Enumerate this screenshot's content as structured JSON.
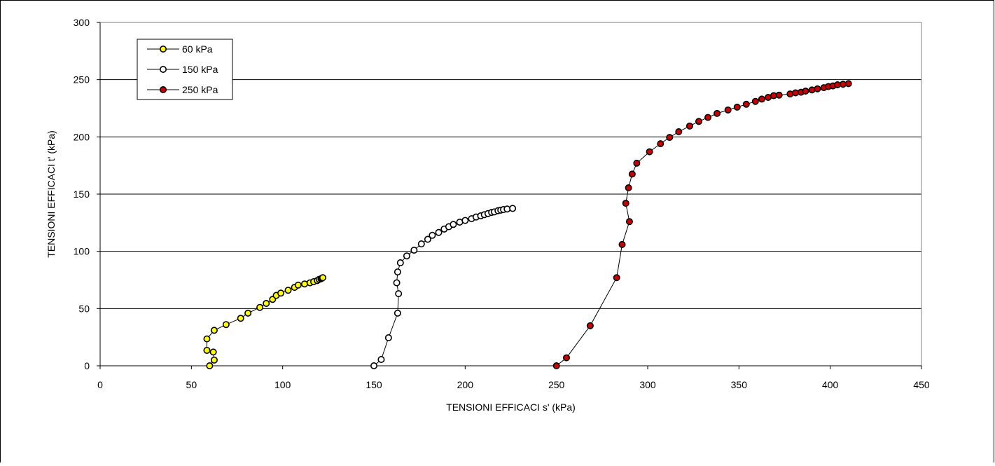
{
  "chart_data": {
    "type": "scatter",
    "xlabel": "TENSIONI EFFICACI s' (kPa)",
    "ylabel": "TENSIONI EFFICACI t'  (kPa)",
    "xlim": [
      0,
      450
    ],
    "ylim": [
      0,
      300
    ],
    "x_ticks": [
      0,
      50,
      100,
      150,
      200,
      250,
      300,
      350,
      400,
      450
    ],
    "y_ticks": [
      0,
      50,
      100,
      150,
      200,
      250,
      300
    ],
    "grid": "horizontal",
    "legend_position": "top-left",
    "series": [
      {
        "name": "60 kPa",
        "color": "#ffff00",
        "points": [
          [
            60,
            0
          ],
          [
            62.5,
            5
          ],
          [
            62,
            12
          ],
          [
            58.5,
            13.5
          ],
          [
            58.5,
            23.5
          ],
          [
            62.5,
            31
          ],
          [
            69,
            36
          ],
          [
            77,
            41.5
          ],
          [
            81,
            46
          ],
          [
            87.5,
            51
          ],
          [
            91,
            54.5
          ],
          [
            94.5,
            58
          ],
          [
            96.5,
            61.5
          ],
          [
            99,
            63.5
          ],
          [
            103,
            66
          ],
          [
            106.5,
            68.5
          ],
          [
            108.5,
            70.5
          ],
          [
            112,
            71.5
          ],
          [
            115,
            72.5
          ],
          [
            117,
            73.5
          ],
          [
            119,
            74.5
          ],
          [
            120,
            75.5
          ],
          [
            121,
            76
          ],
          [
            121.5,
            76.5
          ],
          [
            122,
            77
          ]
        ]
      },
      {
        "name": "150 kPa",
        "color": "#ffffff",
        "points": [
          [
            150,
            0
          ],
          [
            154,
            5.5
          ],
          [
            158,
            24.5
          ],
          [
            163,
            46
          ],
          [
            163.5,
            63
          ],
          [
            162.5,
            72.5
          ],
          [
            163,
            82
          ],
          [
            164.5,
            90
          ],
          [
            168,
            96
          ],
          [
            172,
            101
          ],
          [
            176,
            106.5
          ],
          [
            179.5,
            110.5
          ],
          [
            182,
            114
          ],
          [
            185.5,
            116.5
          ],
          [
            188.5,
            119.5
          ],
          [
            191,
            121.5
          ],
          [
            193.5,
            123.5
          ],
          [
            197,
            125.5
          ],
          [
            200,
            127
          ],
          [
            203.5,
            128.5
          ],
          [
            206,
            130
          ],
          [
            208.5,
            131
          ],
          [
            210.5,
            132
          ],
          [
            212.5,
            133
          ],
          [
            214.5,
            134
          ],
          [
            216,
            134.5
          ],
          [
            218,
            135.5
          ],
          [
            219.5,
            136
          ],
          [
            221,
            136.5
          ],
          [
            223,
            137
          ],
          [
            226,
            137.5
          ]
        ]
      },
      {
        "name": "250 kPa",
        "color": "#cc0000",
        "points": [
          [
            250,
            0
          ],
          [
            255.5,
            7
          ],
          [
            268.5,
            35
          ],
          [
            283,
            77
          ],
          [
            286,
            106
          ],
          [
            290,
            126
          ],
          [
            288,
            142
          ],
          [
            289.5,
            155.5
          ],
          [
            291.5,
            167.5
          ],
          [
            294,
            177
          ],
          [
            301,
            187
          ],
          [
            307,
            194
          ],
          [
            312,
            199.5
          ],
          [
            317,
            204.5
          ],
          [
            323,
            209.5
          ],
          [
            328,
            213.5
          ],
          [
            333,
            217
          ],
          [
            338,
            220.5
          ],
          [
            344,
            223.5
          ],
          [
            349,
            226
          ],
          [
            354,
            228.5
          ],
          [
            359,
            231
          ],
          [
            362.5,
            233
          ],
          [
            366,
            234.5
          ],
          [
            369,
            236
          ],
          [
            372,
            236.5
          ],
          [
            378,
            237.5
          ],
          [
            381,
            238.5
          ],
          [
            384,
            239
          ],
          [
            386.5,
            240
          ],
          [
            390,
            241
          ],
          [
            393,
            242
          ],
          [
            396.5,
            243
          ],
          [
            399,
            244
          ],
          [
            401.5,
            244.5
          ],
          [
            404,
            245.5
          ],
          [
            407,
            246
          ],
          [
            410,
            246.5
          ]
        ]
      }
    ]
  }
}
